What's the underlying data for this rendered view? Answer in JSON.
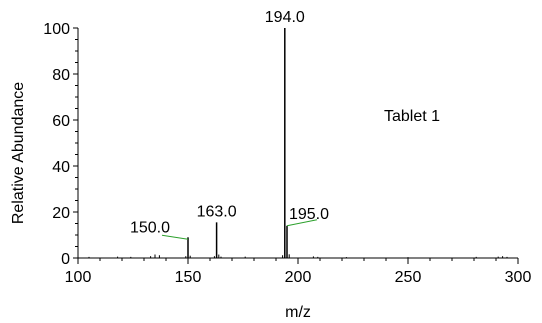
{
  "chart_data": {
    "type": "bar",
    "title": "",
    "annotation": "Tablet 1",
    "xlabel": "m/z",
    "ylabel": "Relative Abundance",
    "xlim": [
      100,
      300
    ],
    "ylim": [
      0,
      100
    ],
    "x_ticks": [
      "100",
      "150",
      "200",
      "250",
      "300"
    ],
    "y_ticks": [
      "0",
      "20",
      "40",
      "60",
      "80",
      "100"
    ],
    "peaks": [
      {
        "mz": 194.0,
        "abundance": 100,
        "label": "194.0",
        "callout": false
      },
      {
        "mz": 163.0,
        "abundance": 15.5,
        "label": "163.0",
        "callout": false
      },
      {
        "mz": 150.0,
        "abundance": 9,
        "label": "150.0",
        "callout": true
      },
      {
        "mz": 195.0,
        "abundance": 14,
        "label": "195.0",
        "callout": true
      }
    ],
    "minor_peaks": [
      {
        "mz": 105,
        "abundance": 0.5
      },
      {
        "mz": 118,
        "abundance": 0.6
      },
      {
        "mz": 124,
        "abundance": 0.5
      },
      {
        "mz": 133,
        "abundance": 0.8
      },
      {
        "mz": 135,
        "abundance": 1.5
      },
      {
        "mz": 137,
        "abundance": 1.2
      },
      {
        "mz": 149,
        "abundance": 0.8
      },
      {
        "mz": 151,
        "abundance": 1.0
      },
      {
        "mz": 162,
        "abundance": 0.8
      },
      {
        "mz": 164,
        "abundance": 1.5
      },
      {
        "mz": 165,
        "abundance": 0.6
      },
      {
        "mz": 176,
        "abundance": 0.6
      },
      {
        "mz": 193,
        "abundance": 1.2
      },
      {
        "mz": 196,
        "abundance": 1.6
      },
      {
        "mz": 207,
        "abundance": 0.7
      },
      {
        "mz": 209,
        "abundance": 0.5
      },
      {
        "mz": 222,
        "abundance": 0.4
      },
      {
        "mz": 250,
        "abundance": 0.4
      },
      {
        "mz": 281,
        "abundance": 0.5
      },
      {
        "mz": 291,
        "abundance": 0.6
      },
      {
        "mz": 293,
        "abundance": 0.8
      },
      {
        "mz": 295,
        "abundance": 0.5
      }
    ],
    "colors": {
      "axis": "#000000",
      "peak": "#000000",
      "callout": "#2ca02c"
    }
  }
}
